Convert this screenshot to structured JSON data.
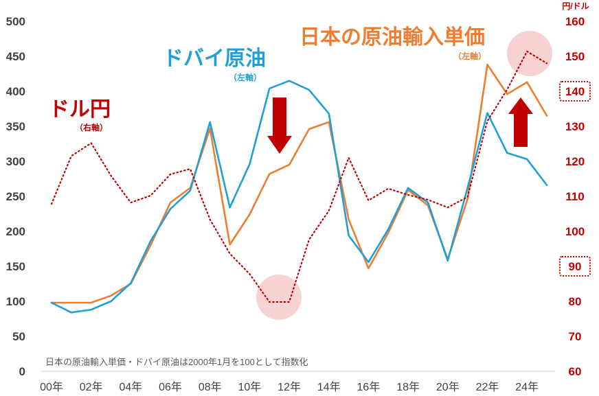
{
  "chart_data": {
    "type": "line",
    "x": [
      "00年",
      "01年",
      "02年",
      "03年",
      "04年",
      "05年",
      "06年",
      "07年",
      "08年",
      "09年",
      "10年",
      "11年",
      "12年",
      "13年",
      "14年",
      "15年",
      "16年",
      "17年",
      "18年",
      "19年",
      "20年",
      "21年",
      "22年",
      "23年",
      "24年",
      "25年"
    ],
    "xtick_labels": [
      "00年",
      "02年",
      "04年",
      "06年",
      "08年",
      "10年",
      "12年",
      "14年",
      "16年",
      "18年",
      "20年",
      "22年",
      "24年"
    ],
    "y_left": {
      "ticks": [
        "0",
        "50",
        "100",
        "150",
        "200",
        "250",
        "300",
        "350",
        "400",
        "450",
        "500"
      ],
      "ylim": [
        0,
        500
      ]
    },
    "y_right": {
      "unit": "円/ドル",
      "ticks": [
        "60",
        "70",
        "80",
        "90",
        "100",
        "110",
        "120",
        "130",
        "140",
        "150",
        "160"
      ],
      "ylim": [
        60,
        160
      ]
    },
    "series": [
      {
        "name": "日本の原油輸入単価",
        "axis_label": "（左軸）",
        "axis": "left",
        "color": "#ed7d31",
        "style": "solid",
        "values": [
          98,
          98,
          98,
          108,
          125,
          180,
          241,
          262,
          347,
          181,
          224,
          282,
          295,
          346,
          356,
          217,
          147,
          198,
          259,
          237,
          160,
          246,
          438,
          396,
          413,
          365
        ]
      },
      {
        "name": "ドバイ原油",
        "axis_label": "（左軸）",
        "axis": "left",
        "color": "#1e9fd6",
        "style": "solid",
        "values": [
          98,
          84,
          88,
          100,
          126,
          186,
          232,
          258,
          356,
          234,
          296,
          404,
          415,
          402,
          368,
          194,
          156,
          203,
          262,
          241,
          158,
          262,
          369,
          312,
          303,
          266
        ]
      },
      {
        "name": "ドル円",
        "axis_label": "（右軸）",
        "axis": "right",
        "color": "#c00000",
        "style": "dotted",
        "values": [
          107.8,
          121.5,
          125.2,
          115.9,
          108.2,
          110.2,
          116.3,
          117.8,
          103.4,
          93.6,
          87.8,
          79.8,
          79.8,
          97.6,
          105.9,
          121.0,
          108.8,
          112.2,
          110.4,
          109.0,
          106.8,
          109.8,
          131.5,
          140.5,
          151.4,
          148.0
        ]
      }
    ],
    "annotations": {
      "note": "日本の原油輸入単価・ドバイ原油は2000年1月を100として指数化",
      "highlighted_ticks_right": [
        "140",
        "90"
      ]
    },
    "grid": false,
    "legend": "inline labels"
  },
  "colors": {
    "arrow": "#c00000",
    "highlight_circle": "#f4c7c7",
    "axis_text": "#404040"
  }
}
